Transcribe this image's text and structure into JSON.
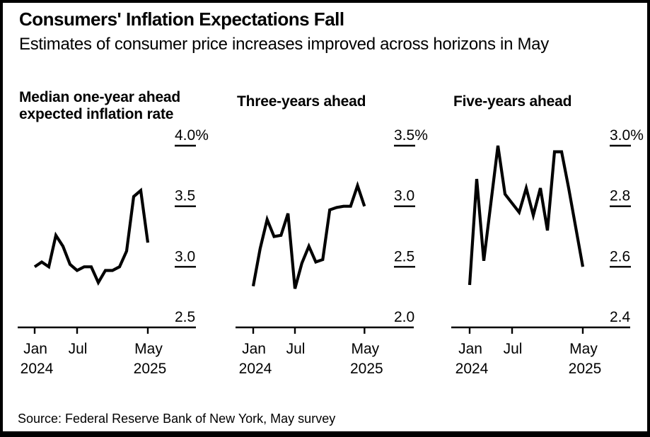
{
  "header": {
    "title": "Consumers' Inflation Expectations Fall",
    "subtitle": "Estimates of consumer price increases improved across horizons in May"
  },
  "source": "Source: Federal Reserve Bank of New York, May survey",
  "colors": {
    "line": "#000000",
    "axis": "#000000",
    "text": "#000000",
    "background": "#ffffff"
  },
  "chart_data": [
    {
      "type": "line",
      "title": "Median one-year ahead expected inflation rate",
      "title_lines": [
        "Median one-year ahead",
        "expected inflation rate"
      ],
      "x": [
        "Jan 2024",
        "Feb 2024",
        "Mar 2024",
        "Apr 2024",
        "May 2024",
        "Jun 2024",
        "Jul 2024",
        "Aug 2024",
        "Sep 2024",
        "Oct 2024",
        "Nov 2024",
        "Dec 2024",
        "Jan 2025",
        "Feb 2025",
        "Mar 2025",
        "Apr 2025",
        "May 2025"
      ],
      "values": [
        3.0,
        3.04,
        3.0,
        3.26,
        3.17,
        3.02,
        2.97,
        3.0,
        3.0,
        2.87,
        2.97,
        2.97,
        3.0,
        3.13,
        3.58,
        3.63,
        3.2
      ],
      "unit": "%",
      "ylim": [
        2.5,
        4.0
      ],
      "yticks": [
        4.0,
        3.5,
        3.0,
        2.5
      ],
      "ytick_labels": [
        "4.0%",
        "3.5",
        "3.0",
        "2.5"
      ],
      "xticks": [
        {
          "index": 0,
          "label": "Jan",
          "year": "2024"
        },
        {
          "index": 6,
          "label": "Jul",
          "year": ""
        },
        {
          "index": 16,
          "label": "May",
          "year": "2025"
        }
      ],
      "grid": false,
      "legend": "none"
    },
    {
      "type": "line",
      "title": "Three-years ahead",
      "title_lines": [
        "Three-years ahead"
      ],
      "x": [
        "Jan 2024",
        "Feb 2024",
        "Mar 2024",
        "Apr 2024",
        "May 2024",
        "Jun 2024",
        "Jul 2024",
        "Aug 2024",
        "Sep 2024",
        "Oct 2024",
        "Nov 2024",
        "Dec 2024",
        "Jan 2025",
        "Feb 2025",
        "Mar 2025",
        "Apr 2025",
        "May 2025"
      ],
      "values": [
        2.34,
        2.65,
        2.89,
        2.75,
        2.76,
        2.94,
        2.32,
        2.53,
        2.67,
        2.54,
        2.56,
        2.97,
        2.99,
        3.0,
        3.0,
        3.17,
        3.0
      ],
      "unit": "%",
      "ylim": [
        2.0,
        3.5
      ],
      "yticks": [
        3.5,
        3.0,
        2.5,
        2.0
      ],
      "ytick_labels": [
        "3.5%",
        "3.0",
        "2.5",
        "2.0"
      ],
      "xticks": [
        {
          "index": 0,
          "label": "Jan",
          "year": "2024"
        },
        {
          "index": 6,
          "label": "Jul",
          "year": ""
        },
        {
          "index": 16,
          "label": "May",
          "year": "2025"
        }
      ],
      "grid": false,
      "legend": "none"
    },
    {
      "type": "line",
      "title": "Five-years ahead",
      "title_lines": [
        "Five-years ahead"
      ],
      "x": [
        "Jan 2024",
        "Feb 2024",
        "Mar 2024",
        "Apr 2024",
        "May 2024",
        "Jun 2024",
        "Jul 2024",
        "Aug 2024",
        "Sep 2024",
        "Oct 2024",
        "Nov 2024",
        "Dec 2024",
        "Jan 2025",
        "Feb 2025",
        "Mar 2025",
        "Apr 2025",
        "May 2025"
      ],
      "values": [
        2.54,
        2.89,
        2.62,
        2.81,
        3.0,
        2.84,
        2.81,
        2.78,
        2.86,
        2.77,
        2.86,
        2.72,
        2.98,
        2.98,
        2.86,
        2.73,
        2.6
      ],
      "unit": "%",
      "ylim": [
        2.4,
        3.0
      ],
      "yticks": [
        3.0,
        2.8,
        2.6,
        2.4
      ],
      "ytick_labels": [
        "3.0%",
        "2.8",
        "2.6",
        "2.4"
      ],
      "xticks": [
        {
          "index": 0,
          "label": "Jan",
          "year": "2024"
        },
        {
          "index": 6,
          "label": "Jul",
          "year": ""
        },
        {
          "index": 16,
          "label": "May",
          "year": "2025"
        }
      ],
      "grid": false,
      "legend": "none"
    }
  ]
}
